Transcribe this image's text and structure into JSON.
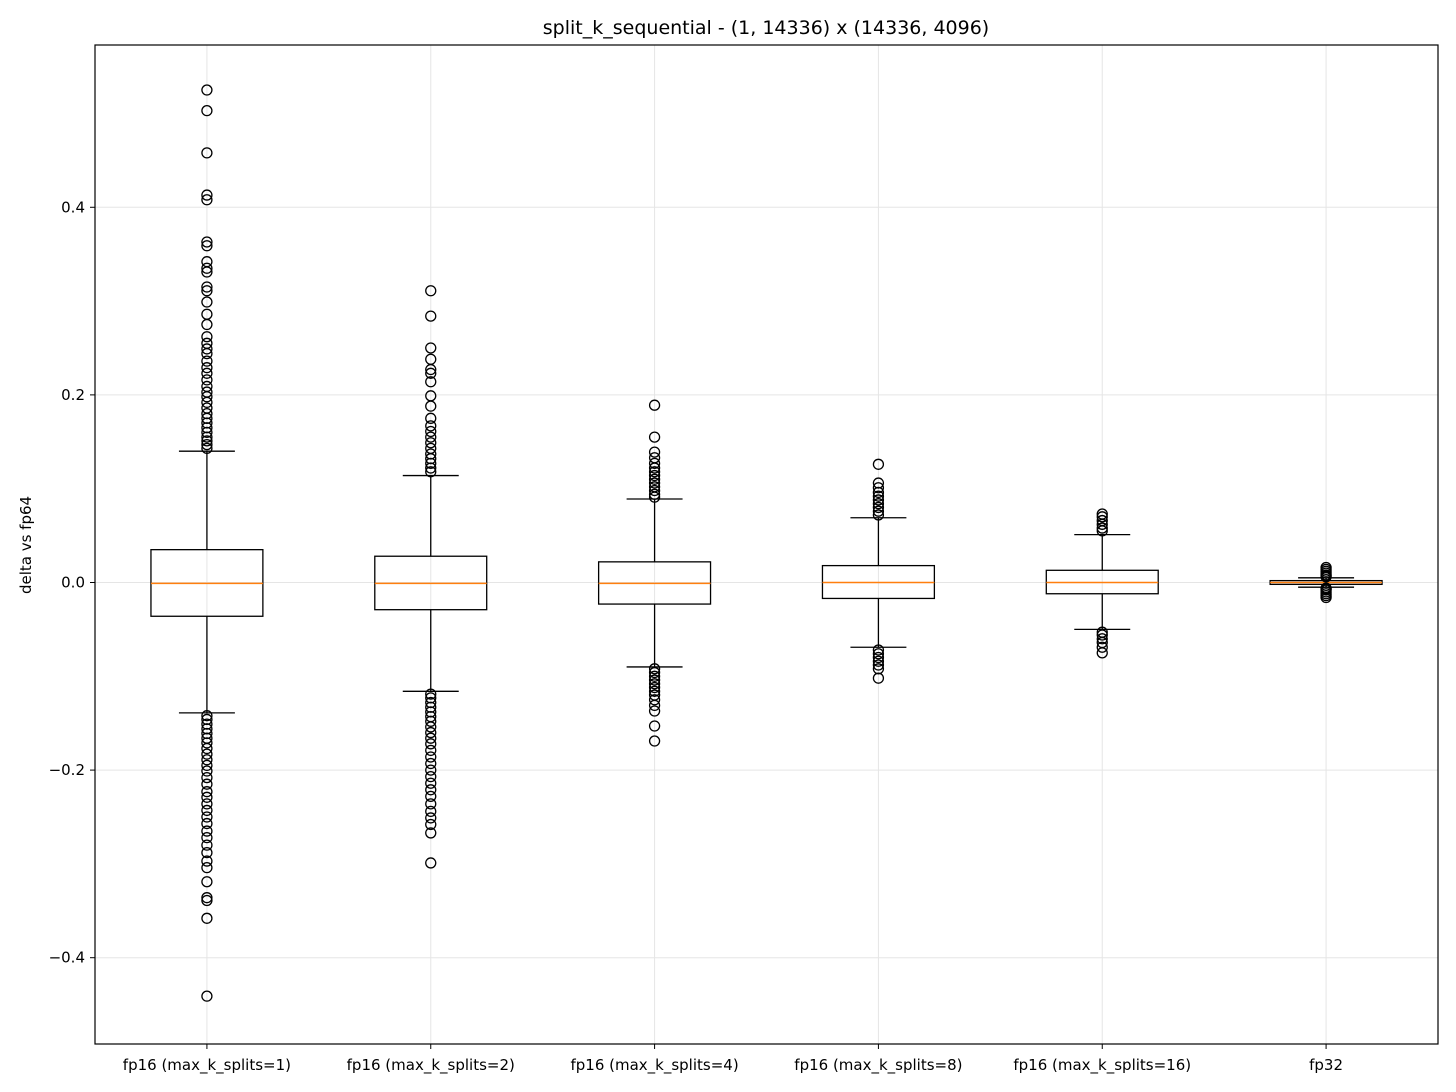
{
  "chart_data": {
    "type": "box",
    "title": "split_k_sequential - (1, 14336) x (14336, 4096)",
    "xlabel": "",
    "ylabel": "delta vs fp64",
    "ylim": [
      -0.492,
      0.573
    ],
    "grid": true,
    "yticks": [
      {
        "value": 0.4,
        "label": "0.4"
      },
      {
        "value": 0.2,
        "label": "0.2"
      },
      {
        "value": 0.0,
        "label": "0.0"
      },
      {
        "value": -0.2,
        "label": "−0.2"
      },
      {
        "value": -0.4,
        "label": "−0.4"
      }
    ],
    "categories": [
      "fp16 (max_k_splits=1)",
      "fp16 (max_k_splits=2)",
      "fp16 (max_k_splits=4)",
      "fp16 (max_k_splits=8)",
      "fp16 (max_k_splits=16)",
      "fp32"
    ],
    "boxes": [
      {
        "q1": -0.036,
        "median": -0.001,
        "q3": 0.035,
        "whisker_low": -0.139,
        "whisker_high": 0.14,
        "outliers": [
          0.525,
          0.503,
          0.458,
          0.413,
          0.408,
          0.363,
          0.359,
          0.342,
          0.335,
          0.331,
          0.315,
          0.311,
          0.299,
          0.286,
          0.275,
          0.262,
          0.255,
          0.249,
          0.244,
          0.236,
          0.229,
          0.223,
          0.216,
          0.209,
          0.203,
          0.198,
          0.192,
          0.186,
          0.18,
          0.175,
          0.17,
          0.165,
          0.16,
          0.155,
          0.151,
          0.147,
          0.143,
          -0.142,
          -0.146,
          -0.151,
          -0.156,
          -0.161,
          -0.166,
          -0.171,
          -0.177,
          -0.183,
          -0.189,
          -0.195,
          -0.201,
          -0.208,
          -0.215,
          -0.223,
          -0.229,
          -0.236,
          -0.243,
          -0.25,
          -0.257,
          -0.265,
          -0.272,
          -0.28,
          -0.288,
          -0.297,
          -0.304,
          -0.319,
          -0.336,
          -0.339,
          -0.358,
          -0.441
        ]
      },
      {
        "q1": -0.029,
        "median": -0.001,
        "q3": 0.028,
        "whisker_low": -0.116,
        "whisker_high": 0.114,
        "outliers": [
          0.311,
          0.284,
          0.25,
          0.238,
          0.227,
          0.223,
          0.214,
          0.199,
          0.188,
          0.175,
          0.167,
          0.161,
          0.155,
          0.149,
          0.143,
          0.137,
          0.132,
          0.127,
          0.122,
          0.118,
          -0.119,
          -0.123,
          -0.128,
          -0.133,
          -0.138,
          -0.143,
          -0.148,
          -0.154,
          -0.16,
          -0.166,
          -0.172,
          -0.179,
          -0.186,
          -0.193,
          -0.2,
          -0.207,
          -0.214,
          -0.221,
          -0.228,
          -0.236,
          -0.244,
          -0.251,
          -0.258,
          -0.267,
          -0.299
        ]
      },
      {
        "q1": -0.023,
        "median": -0.001,
        "q3": 0.022,
        "whisker_low": -0.09,
        "whisker_high": 0.089,
        "outliers": [
          0.189,
          0.155,
          0.139,
          0.133,
          0.127,
          0.122,
          0.118,
          0.114,
          0.11,
          0.106,
          0.102,
          0.098,
          0.094,
          0.091,
          -0.092,
          -0.096,
          -0.1,
          -0.104,
          -0.108,
          -0.112,
          -0.116,
          -0.12,
          -0.125,
          -0.131,
          -0.137,
          -0.153,
          -0.169
        ]
      },
      {
        "q1": -0.017,
        "median": 0.0,
        "q3": 0.018,
        "whisker_low": -0.069,
        "whisker_high": 0.069,
        "outliers": [
          0.126,
          0.106,
          0.101,
          0.096,
          0.092,
          0.088,
          0.084,
          0.08,
          0.076,
          0.072,
          -0.072,
          -0.076,
          -0.08,
          -0.084,
          -0.088,
          -0.092,
          -0.102
        ]
      },
      {
        "q1": -0.012,
        "median": -0.0,
        "q3": 0.013,
        "whisker_low": -0.05,
        "whisker_high": 0.051,
        "outliers": [
          0.073,
          0.07,
          0.066,
          0.062,
          0.058,
          0.055,
          -0.053,
          -0.056,
          -0.06,
          -0.064,
          -0.069,
          -0.075
        ]
      },
      {
        "q1": -0.002,
        "median": 0.0,
        "q3": 0.002,
        "whisker_low": -0.005,
        "whisker_high": 0.005,
        "outliers": [
          0.016,
          0.014,
          0.012,
          0.01,
          0.008,
          0.007,
          0.006,
          -0.006,
          -0.007,
          -0.008,
          -0.01,
          -0.012,
          -0.014,
          -0.016
        ]
      }
    ],
    "colors": {
      "box": "#000000",
      "median": "#ff7f0e",
      "grid": "#e5e5e5",
      "outlier_edge": "#000000"
    }
  }
}
